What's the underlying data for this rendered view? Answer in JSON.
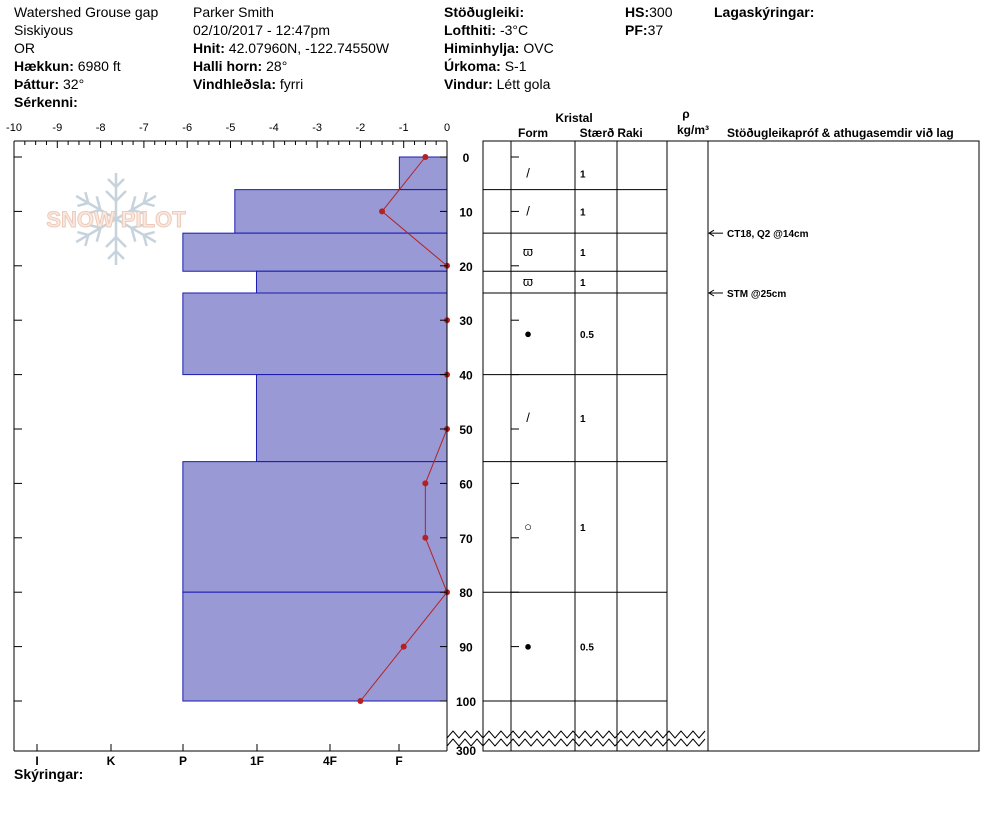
{
  "header": {
    "location": "Watershed Grouse gap",
    "region": "Siskiyous",
    "state": "OR",
    "elevation_label": "Hækkun:",
    "elevation_value": "6980 ft",
    "aspect_label": "Þáttur:",
    "aspect_value": "32°",
    "features_label": "Sérkenni:",
    "observer": "Parker Smith",
    "datetime": "02/10/2017 - 12:47pm",
    "coords_label": "Hnit:",
    "coords_value": "42.07960N, -122.74550W",
    "slope_label": "Halli horn:",
    "slope_value": "28°",
    "wind_loading_label": "Vindhleðsla:",
    "wind_loading_value": "fyrri",
    "stability_label": "Stöðugleiki:",
    "air_temp_label": "Lofthiti:",
    "air_temp_value": "-3°C",
    "sky_label": "Himinhylja:",
    "sky_value": "OVC",
    "precip_label": "Úrkoma:",
    "precip_value": "S-1",
    "wind_label": "Vindur:",
    "wind_value": "Létt gola",
    "hs_label": "HS:",
    "hs_value": "300",
    "pf_label": "PF:",
    "pf_value": "37",
    "layer_notes_label": "Lagaskýringar:"
  },
  "legend_label": "Skýringar:",
  "watermark": "SNOW PILOT",
  "colors": {
    "hardness_fill": "#9999d6",
    "hardness_line": "#1a1ab0",
    "temp": "#b22222"
  },
  "chart_data": {
    "type": "snow-profile",
    "temperature_axis": {
      "ticks": [
        "-10",
        "-9",
        "-8",
        "-7",
        "-6",
        "-5",
        "-4",
        "-3",
        "-2",
        "-1",
        "0"
      ],
      "range": [
        -10,
        0
      ]
    },
    "hardness_axis": {
      "ticks": [
        "I",
        "K",
        "P",
        "1F",
        "4F",
        "F"
      ]
    },
    "depth_axis": {
      "ticks": [
        "0",
        "10",
        "20",
        "30",
        "40",
        "50",
        "60",
        "70",
        "80",
        "90",
        "100"
      ],
      "bottom_label": "300",
      "range": [
        0,
        100
      ]
    },
    "temperature_profile": [
      {
        "depth": 0,
        "temp": -0.5
      },
      {
        "depth": 10,
        "temp": -1.5
      },
      {
        "depth": 20,
        "temp": 0
      },
      {
        "depth": 30,
        "temp": 0
      },
      {
        "depth": 40,
        "temp": 0
      },
      {
        "depth": 50,
        "temp": 0
      },
      {
        "depth": 60,
        "temp": -0.5
      },
      {
        "depth": 70,
        "temp": -0.5
      },
      {
        "depth": 80,
        "temp": 0
      },
      {
        "depth": 90,
        "temp": -1
      },
      {
        "depth": 100,
        "temp": -2
      }
    ],
    "hardness_layers": [
      {
        "top": 0,
        "bottom": 6,
        "temp_edge": -1.1
      },
      {
        "top": 6,
        "bottom": 14,
        "temp_edge": -4.9
      },
      {
        "top": 14,
        "bottom": 21,
        "temp_edge": -6.1
      },
      {
        "top": 21,
        "bottom": 25,
        "temp_edge": -4.4
      },
      {
        "top": 25,
        "bottom": 40,
        "temp_edge": -6.1
      },
      {
        "top": 40,
        "bottom": 56,
        "temp_edge": -4.4
      },
      {
        "top": 56,
        "bottom": 80,
        "temp_edge": -6.1
      },
      {
        "top": 80,
        "bottom": 100,
        "temp_edge": -6.1
      }
    ],
    "crystal_header": {
      "group": "Kristal",
      "form": "Form",
      "size": "Stærð",
      "moisture": "Raki",
      "density_symbol": "ρ",
      "density_unit": "kg/m³",
      "tests": "Stöðugleikapróf & athugasemdir við lag"
    },
    "layers": [
      {
        "top": 0,
        "bottom": 6,
        "form": "/",
        "size": "1"
      },
      {
        "top": 6,
        "bottom": 14,
        "form": "/",
        "size": "1"
      },
      {
        "top": 14,
        "bottom": 21,
        "form": "ϖ",
        "size": "1"
      },
      {
        "top": 21,
        "bottom": 25,
        "form": "ϖ",
        "size": "1"
      },
      {
        "top": 25,
        "bottom": 40,
        "form": "●",
        "size": "0.5"
      },
      {
        "top": 40,
        "bottom": 56,
        "form": "/",
        "size": "1"
      },
      {
        "top": 56,
        "bottom": 80,
        "form": "○",
        "size": "1"
      },
      {
        "top": 80,
        "bottom": 100,
        "form": "●",
        "size": "0.5"
      }
    ],
    "stability_tests": [
      {
        "depth": 14,
        "text": "CT18, Q2 @14cm"
      },
      {
        "depth": 25,
        "text": "STM @25cm"
      }
    ]
  }
}
